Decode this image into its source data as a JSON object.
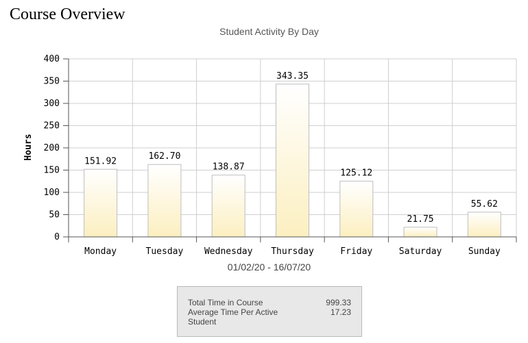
{
  "page": {
    "title": "Course Overview"
  },
  "chart_data": {
    "type": "bar",
    "title": "Student Activity By Day",
    "xlabel": "01/02/20 - 16/07/20",
    "ylabel": "Hours",
    "ylim": [
      0,
      400
    ],
    "yticks": [
      "0",
      "50",
      "100",
      "150",
      "200",
      "250",
      "300",
      "350",
      "400"
    ],
    "grid": true,
    "categories": [
      "Monday",
      "Tuesday",
      "Wednesday",
      "Thursday",
      "Friday",
      "Saturday",
      "Sunday"
    ],
    "values": [
      151.92,
      162.7,
      138.87,
      343.35,
      125.12,
      21.75,
      55.62
    ],
    "value_labels": [
      "151.92",
      "162.70",
      "138.87",
      "343.35",
      "125.12",
      "21.75",
      "55.62"
    ],
    "bar_color_top": "#ffffff",
    "bar_color_bottom": "#fcefc0",
    "bar_border_color": "#bdbdbd"
  },
  "summary": {
    "rows": [
      {
        "label": "Total Time in Course",
        "value": "999.33"
      },
      {
        "label": "Average Time Per Active Student",
        "value": "17.23"
      }
    ]
  }
}
